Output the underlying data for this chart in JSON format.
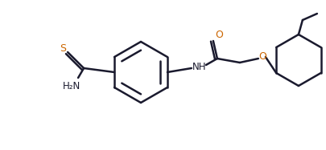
{
  "bg_color": "#ffffff",
  "line_color": "#1a1a2e",
  "text_color": "#1a1a2e",
  "atom_colors": {
    "O": "#cc6600",
    "N": "#1a1a2e",
    "S": "#cc6600",
    "H2N": "#1a1a2e"
  },
  "linewidth": 1.8,
  "figsize": [
    4.05,
    1.87
  ],
  "dpi": 100
}
